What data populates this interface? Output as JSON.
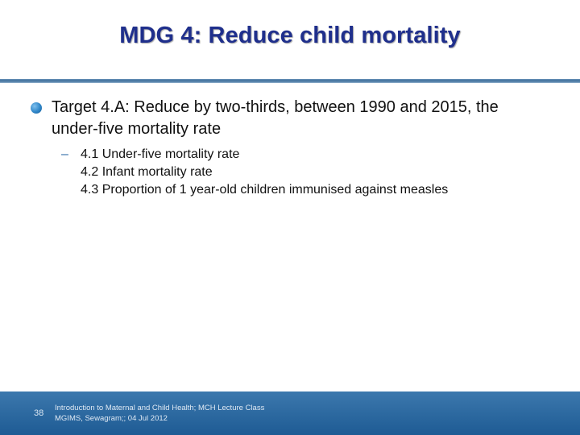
{
  "slide": {
    "title": "MDG 4: Reduce child mortality",
    "bullet": {
      "text": "Target 4.A: Reduce by two-thirds, between 1990 and 2015, the under-five mortality rate"
    },
    "sub_bullet": {
      "dash": "–",
      "lines": [
        "4.1 Under-five mortality rate",
        "4.2 Infant mortality rate",
        "4.3 Proportion of 1 year-old children immunised against measles"
      ]
    },
    "footer": {
      "page_number": "38",
      "line1": "Introduction to Maternal and Child Health; MCH Lecture Class",
      "line2": "MGIMS, Sewagram;; 04 Jul  2012"
    }
  },
  "colors": {
    "title": "#1f2f8c",
    "divider": "#4a7aa6",
    "bullet": "#2f86c8",
    "footer_bg": "#2a68a0"
  }
}
